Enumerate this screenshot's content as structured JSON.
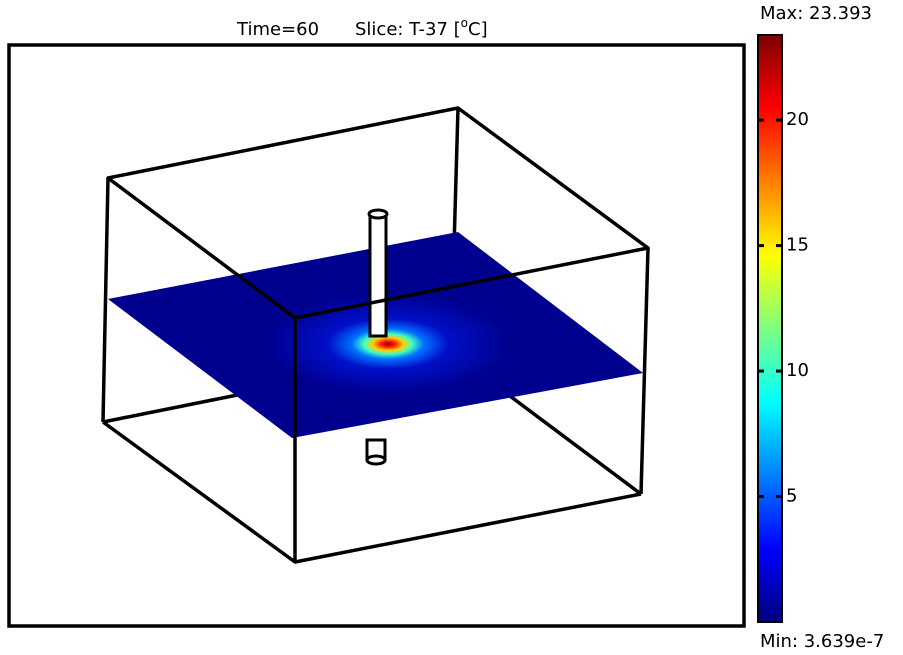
{
  "chart_data": {
    "type": "slice3d",
    "title": "Time=60",
    "slice_label": "Slice: T-37 [",
    "unit_sup": "o",
    "unit_rest": "C]",
    "clim": [
      {
        "value": 3.639e-07,
        "label": "Min: 3.639e-7"
      },
      {
        "value": 23.393,
        "label": "Max: 23.393"
      }
    ],
    "cticks": [
      5,
      10,
      15,
      20
    ],
    "colormap": "jet"
  }
}
